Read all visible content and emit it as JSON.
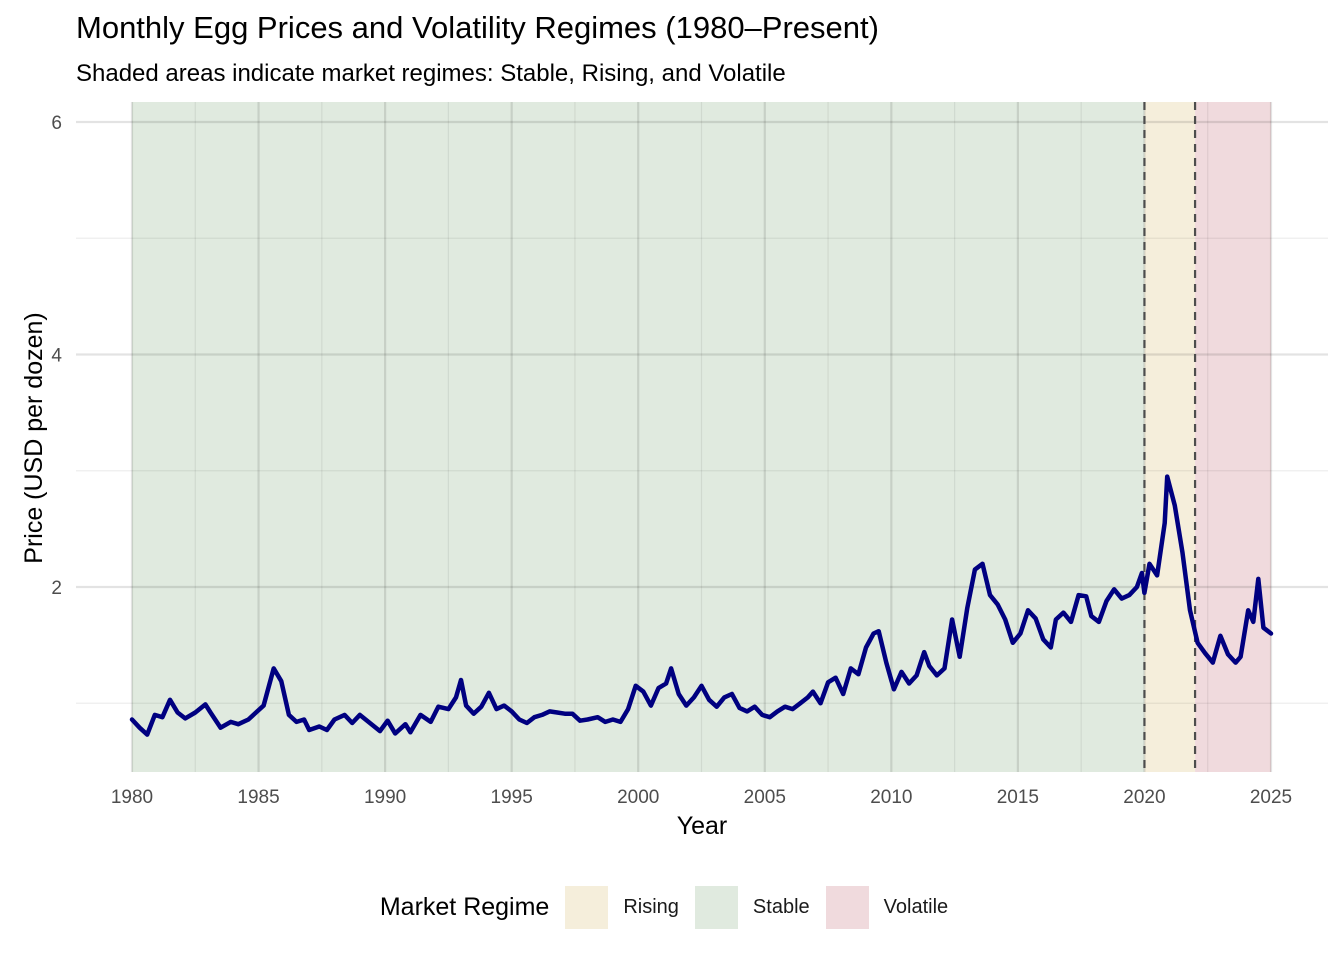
{
  "chart_data": {
    "type": "line",
    "title": "Monthly Egg Prices and Volatility Regimes (1980–Present)",
    "subtitle": "Shaded areas indicate market regimes: Stable, Rising, and Volatile",
    "xlabel": "Year",
    "ylabel": "Price (USD per dozen)",
    "xlim": [
      1980,
      2025
    ],
    "ylim": [
      0.5,
      6.1
    ],
    "x_ticks": [
      1980,
      1985,
      1990,
      1995,
      2000,
      2005,
      2010,
      2015,
      2020,
      2025
    ],
    "y_ticks": [
      2,
      4,
      6
    ],
    "grid": true,
    "legend": {
      "title": "Market Regime",
      "position": "bottom",
      "items": [
        {
          "label": "Rising",
          "color": "#f5eedb"
        },
        {
          "label": "Stable",
          "color": "#e0eadf"
        },
        {
          "label": "Volatile",
          "color": "#f0dadd"
        }
      ]
    },
    "regimes": [
      {
        "name": "Stable",
        "start": 1980,
        "end": 2020,
        "color": "#e0eadf"
      },
      {
        "name": "Rising",
        "start": 2020,
        "end": 2022,
        "color": "#f5eedb"
      },
      {
        "name": "Volatile",
        "start": 2022,
        "end": 2025,
        "color": "#f0dadd"
      }
    ],
    "regime_boundaries": [
      2020,
      2022
    ],
    "series": [
      {
        "color": "#000080",
        "points": [
          [
            1980.0,
            0.86
          ],
          [
            1980.3,
            0.79
          ],
          [
            1980.6,
            0.73
          ],
          [
            1980.9,
            0.9
          ],
          [
            1981.2,
            0.88
          ],
          [
            1981.5,
            1.03
          ],
          [
            1981.8,
            0.92
          ],
          [
            1982.1,
            0.87
          ],
          [
            1982.5,
            0.92
          ],
          [
            1982.9,
            0.99
          ],
          [
            1983.1,
            0.92
          ],
          [
            1983.5,
            0.79
          ],
          [
            1983.9,
            0.84
          ],
          [
            1984.2,
            0.82
          ],
          [
            1984.6,
            0.86
          ],
          [
            1984.9,
            0.92
          ],
          [
            1985.2,
            0.98
          ],
          [
            1985.6,
            1.3
          ],
          [
            1985.9,
            1.19
          ],
          [
            1986.2,
            0.9
          ],
          [
            1986.5,
            0.84
          ],
          [
            1986.8,
            0.86
          ],
          [
            1987.0,
            0.77
          ],
          [
            1987.4,
            0.8
          ],
          [
            1987.7,
            0.77
          ],
          [
            1988.0,
            0.86
          ],
          [
            1988.4,
            0.9
          ],
          [
            1988.7,
            0.83
          ],
          [
            1989.0,
            0.9
          ],
          [
            1989.4,
            0.83
          ],
          [
            1989.8,
            0.76
          ],
          [
            1990.1,
            0.85
          ],
          [
            1990.4,
            0.74
          ],
          [
            1990.8,
            0.82
          ],
          [
            1991.0,
            0.75
          ],
          [
            1991.4,
            0.9
          ],
          [
            1991.8,
            0.84
          ],
          [
            1992.1,
            0.97
          ],
          [
            1992.5,
            0.95
          ],
          [
            1992.8,
            1.05
          ],
          [
            1993.0,
            1.2
          ],
          [
            1993.2,
            0.98
          ],
          [
            1993.5,
            0.91
          ],
          [
            1993.8,
            0.97
          ],
          [
            1994.1,
            1.09
          ],
          [
            1994.4,
            0.95
          ],
          [
            1994.7,
            0.98
          ],
          [
            1995.0,
            0.93
          ],
          [
            1995.3,
            0.86
          ],
          [
            1995.6,
            0.83
          ],
          [
            1995.9,
            0.88
          ],
          [
            1996.2,
            0.9
          ],
          [
            1996.5,
            0.93
          ],
          [
            1996.8,
            0.92
          ],
          [
            1997.1,
            0.91
          ],
          [
            1997.4,
            0.91
          ],
          [
            1997.7,
            0.85
          ],
          [
            1998.0,
            0.86
          ],
          [
            1998.4,
            0.88
          ],
          [
            1998.7,
            0.84
          ],
          [
            1999.0,
            0.86
          ],
          [
            1999.3,
            0.84
          ],
          [
            1999.6,
            0.95
          ],
          [
            1999.9,
            1.15
          ],
          [
            2000.2,
            1.1
          ],
          [
            2000.5,
            0.98
          ],
          [
            2000.8,
            1.13
          ],
          [
            2001.1,
            1.17
          ],
          [
            2001.3,
            1.3
          ],
          [
            2001.6,
            1.08
          ],
          [
            2001.9,
            0.98
          ],
          [
            2002.2,
            1.05
          ],
          [
            2002.5,
            1.15
          ],
          [
            2002.8,
            1.03
          ],
          [
            2003.1,
            0.97
          ],
          [
            2003.4,
            1.05
          ],
          [
            2003.7,
            1.08
          ],
          [
            2004.0,
            0.96
          ],
          [
            2004.3,
            0.93
          ],
          [
            2004.6,
            0.97
          ],
          [
            2004.9,
            0.9
          ],
          [
            2005.2,
            0.88
          ],
          [
            2005.5,
            0.93
          ],
          [
            2005.8,
            0.97
          ],
          [
            2006.1,
            0.95
          ],
          [
            2006.4,
            1.0
          ],
          [
            2006.7,
            1.05
          ],
          [
            2006.9,
            1.1
          ],
          [
            2007.2,
            1.0
          ],
          [
            2007.5,
            1.18
          ],
          [
            2007.8,
            1.22
          ],
          [
            2008.1,
            1.08
          ],
          [
            2008.4,
            1.3
          ],
          [
            2008.7,
            1.25
          ],
          [
            2009.0,
            1.48
          ],
          [
            2009.3,
            1.6
          ],
          [
            2009.5,
            1.62
          ],
          [
            2009.8,
            1.35
          ],
          [
            2010.1,
            1.12
          ],
          [
            2010.4,
            1.27
          ],
          [
            2010.7,
            1.17
          ],
          [
            2011.0,
            1.24
          ],
          [
            2011.3,
            1.44
          ],
          [
            2011.5,
            1.32
          ],
          [
            2011.8,
            1.24
          ],
          [
            2012.1,
            1.3
          ],
          [
            2012.4,
            1.72
          ],
          [
            2012.7,
            1.4
          ],
          [
            2013.0,
            1.82
          ],
          [
            2013.3,
            2.15
          ],
          [
            2013.6,
            2.2
          ],
          [
            2013.9,
            1.93
          ],
          [
            2014.2,
            1.85
          ],
          [
            2014.5,
            1.72
          ],
          [
            2014.8,
            1.52
          ],
          [
            2015.1,
            1.6
          ],
          [
            2015.4,
            1.8
          ],
          [
            2015.7,
            1.73
          ],
          [
            2016.0,
            1.55
          ],
          [
            2016.3,
            1.48
          ],
          [
            2016.5,
            1.72
          ],
          [
            2016.8,
            1.78
          ],
          [
            2017.1,
            1.7
          ],
          [
            2017.4,
            1.93
          ],
          [
            2017.7,
            1.92
          ],
          [
            2017.9,
            1.75
          ],
          [
            2018.2,
            1.7
          ],
          [
            2018.5,
            1.88
          ],
          [
            2018.8,
            1.98
          ],
          [
            2019.1,
            1.9
          ],
          [
            2019.4,
            1.93
          ],
          [
            2019.7,
            2.0
          ],
          [
            2019.9,
            2.12
          ],
          [
            2020.0,
            1.95
          ],
          [
            2020.2,
            2.2
          ],
          [
            2020.5,
            2.1
          ],
          [
            2020.8,
            2.55
          ],
          [
            2020.9,
            2.95
          ],
          [
            2021.2,
            2.7
          ],
          [
            2021.5,
            2.3
          ],
          [
            2021.8,
            1.8
          ],
          [
            2022.1,
            1.52
          ],
          [
            2022.4,
            1.43
          ],
          [
            2022.7,
            1.35
          ],
          [
            2023.0,
            1.58
          ],
          [
            2023.3,
            1.42
          ],
          [
            2023.6,
            1.35
          ],
          [
            2023.8,
            1.4
          ],
          [
            2024.1,
            1.8
          ],
          [
            2024.3,
            1.7
          ],
          [
            2024.5,
            2.07
          ],
          [
            2024.7,
            1.65
          ],
          [
            2025.0,
            1.6
          ]
        ]
      }
    ]
  }
}
